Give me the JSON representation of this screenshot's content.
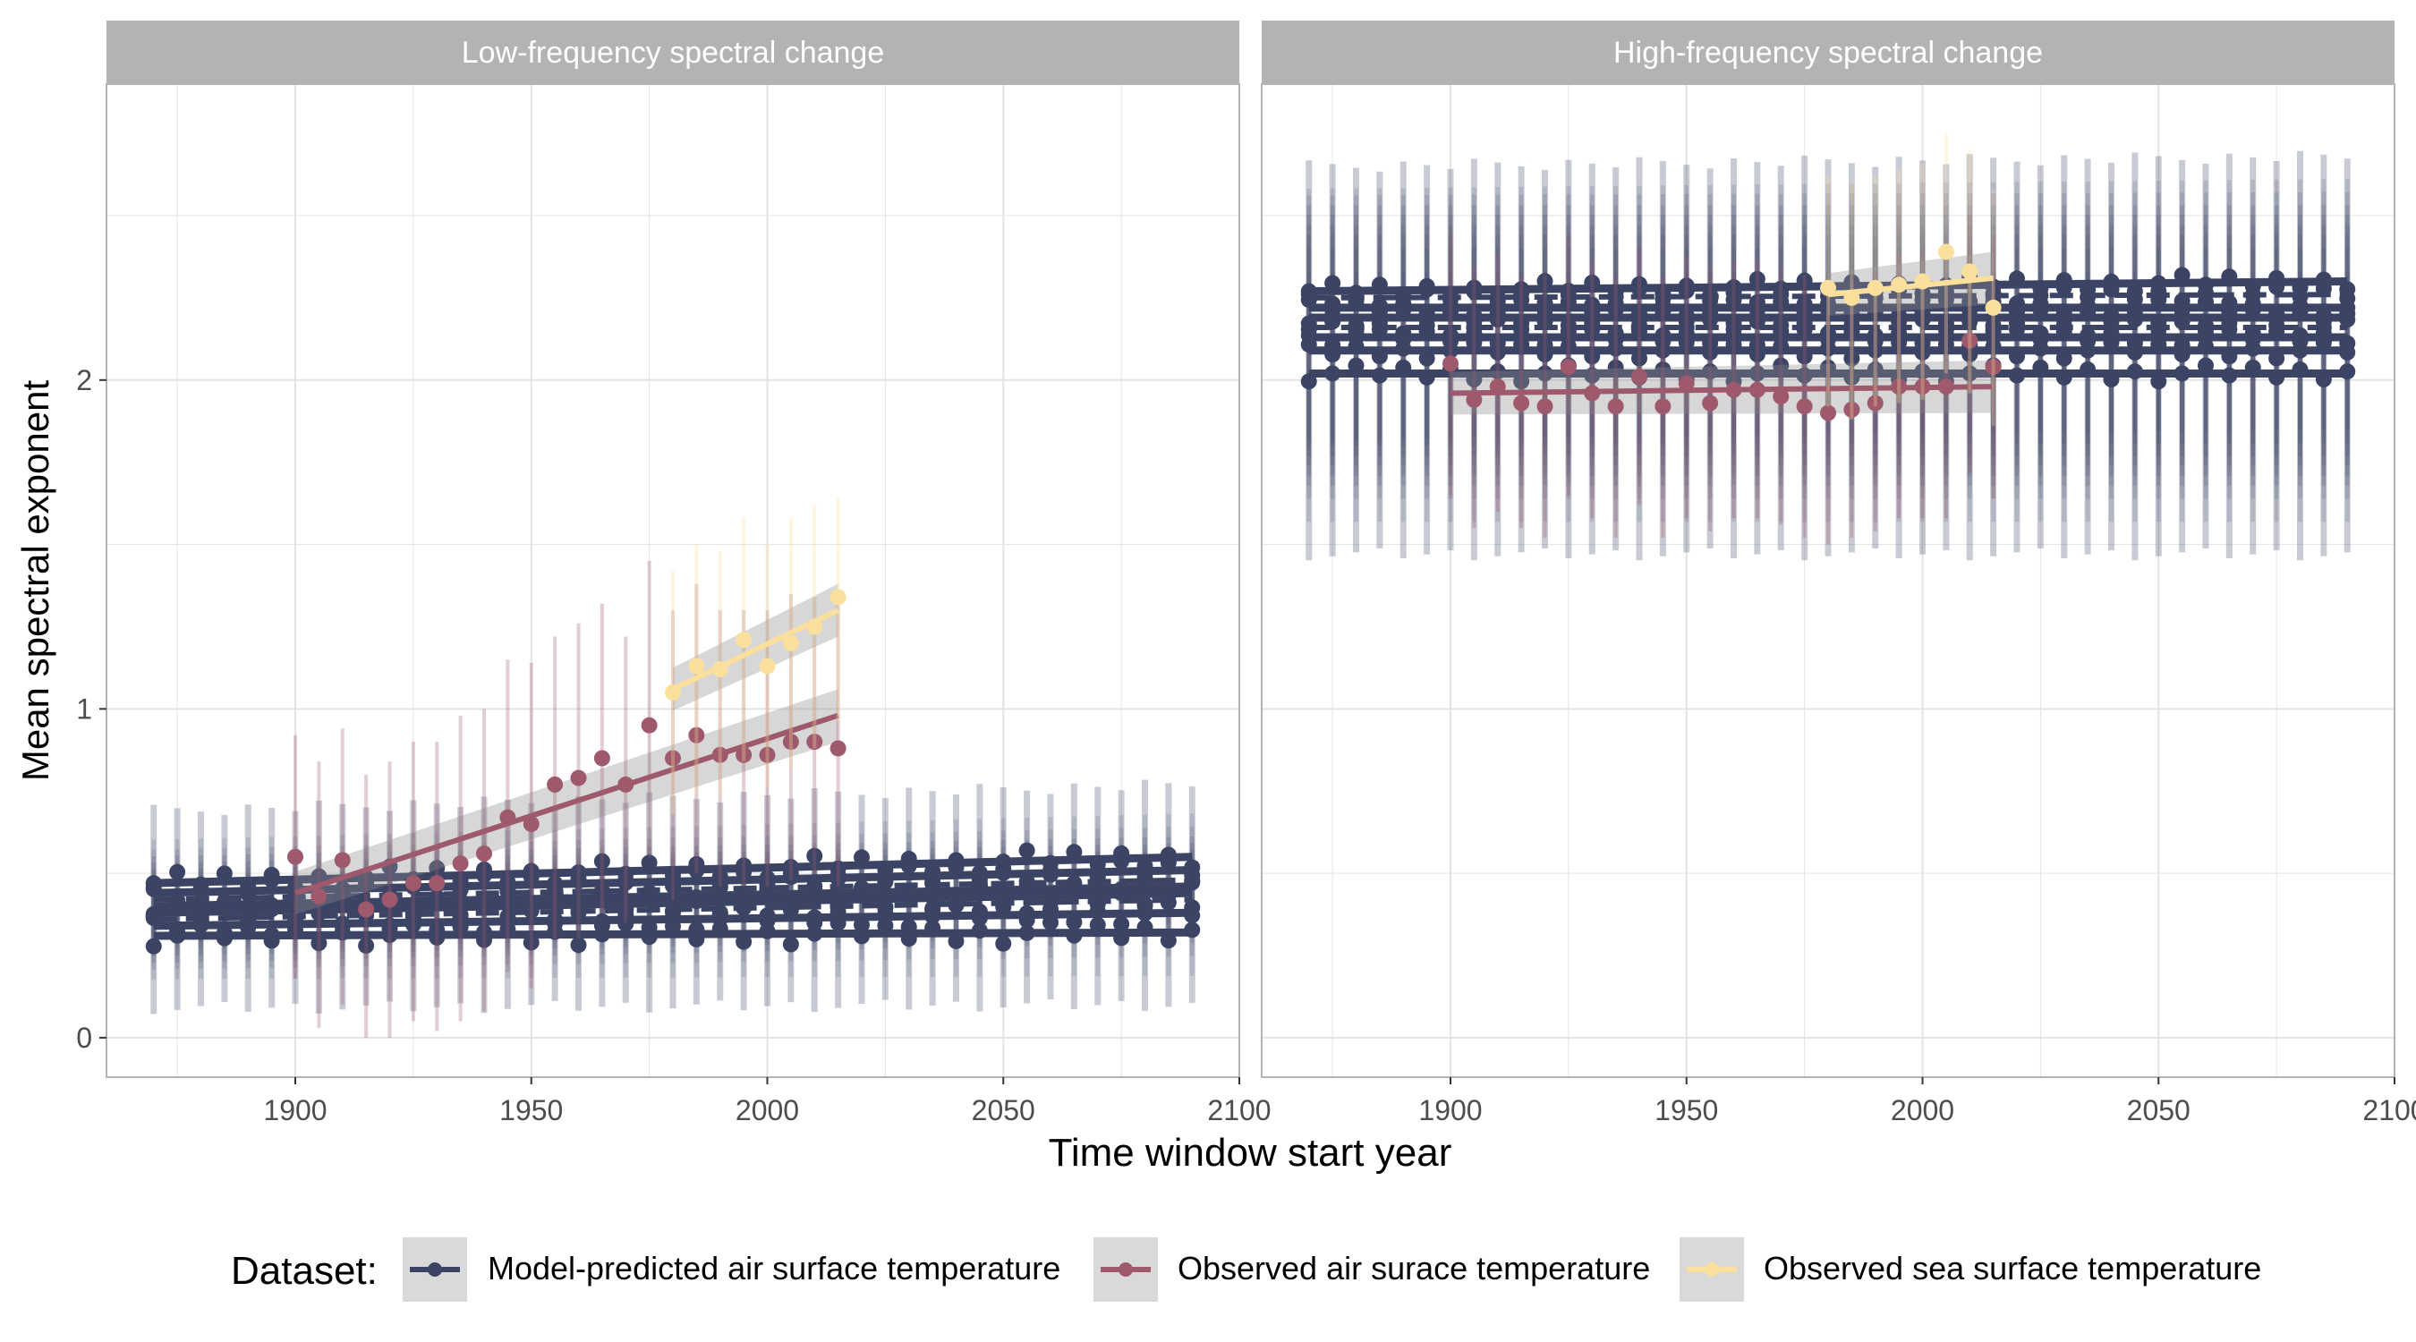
{
  "chart_data": {
    "type": "scatter",
    "y_label": "Mean spectral exponent",
    "x_label": "Time window start year",
    "x_ticks": [
      "1900",
      "1950",
      "2000",
      "2050",
      "2100"
    ],
    "y_ticks": [
      "0",
      "1",
      "2"
    ],
    "xlim": [
      1860,
      2100
    ],
    "ylim": [
      -0.12,
      2.9
    ],
    "grid": true,
    "legend": {
      "position": "bottom",
      "title": "Dataset:",
      "entries": [
        {
          "name": "Model-predicted air surface temperature",
          "color": "#3c4466"
        },
        {
          "name": "Observed air surace temperature",
          "color": "#9e5a6c"
        },
        {
          "name": "Observed sea surface temperature",
          "color": "#fbdf9d"
        }
      ]
    },
    "panels": [
      {
        "title": "Low-frequency spectral change",
        "model": {
          "x_start": 1870,
          "x_end": 2090,
          "x_step": 5,
          "member_start": [
            0.31,
            0.34,
            0.36,
            0.38,
            0.4,
            0.42,
            0.44,
            0.47
          ],
          "member_end": [
            0.32,
            0.38,
            0.42,
            0.44,
            0.46,
            0.48,
            0.51,
            0.55
          ],
          "band_low_offset": -0.22,
          "band_high_offset": 0.22,
          "dashed_members": [
            2,
            5
          ]
        },
        "observed_air": {
          "x": [
            1900,
            1905,
            1910,
            1915,
            1920,
            1925,
            1930,
            1935,
            1940,
            1945,
            1950,
            1955,
            1960,
            1965,
            1970,
            1975,
            1980,
            1985,
            1990,
            1995,
            2000,
            2005,
            2010,
            2015
          ],
          "y": [
            0.55,
            0.43,
            0.54,
            0.39,
            0.42,
            0.47,
            0.47,
            0.53,
            0.56,
            0.67,
            0.65,
            0.77,
            0.79,
            0.85,
            0.77,
            0.95,
            0.85,
            0.92,
            0.86,
            0.86,
            0.86,
            0.9,
            0.9,
            0.88
          ],
          "ci_low": [
            0.18,
            0.03,
            0.1,
            0.0,
            0.0,
            0.05,
            0.02,
            0.05,
            0.08,
            0.2,
            0.15,
            0.3,
            0.3,
            0.38,
            0.35,
            0.55,
            0.42,
            0.5,
            0.46,
            0.46,
            0.46,
            0.48,
            0.5,
            0.46
          ],
          "ci_high": [
            0.92,
            0.84,
            0.94,
            0.8,
            0.84,
            0.9,
            0.9,
            0.98,
            1.0,
            1.15,
            1.14,
            1.22,
            1.26,
            1.32,
            1.22,
            1.45,
            1.3,
            1.38,
            1.3,
            1.3,
            1.3,
            1.35,
            1.34,
            1.32
          ],
          "trend": {
            "x0": 1900,
            "y0": 0.44,
            "x1": 2015,
            "y1": 0.98
          }
        },
        "observed_sea": {
          "x": [
            1980,
            1985,
            1990,
            1995,
            2000,
            2005,
            2010,
            2015
          ],
          "y": [
            1.05,
            1.13,
            1.12,
            1.21,
            1.13,
            1.2,
            1.25,
            1.34
          ],
          "ci_low": [
            0.68,
            0.75,
            0.74,
            0.84,
            0.76,
            0.82,
            0.88,
            0.96
          ],
          "ci_high": [
            1.42,
            1.5,
            1.48,
            1.58,
            1.5,
            1.58,
            1.62,
            1.64
          ],
          "trend": {
            "x0": 1980,
            "y0": 1.06,
            "x1": 2015,
            "y1": 1.3
          }
        }
      },
      {
        "title": "High-frequency spectral change",
        "model": {
          "x_start": 1870,
          "x_end": 2090,
          "x_step": 5,
          "member_start": [
            2.02,
            2.09,
            2.13,
            2.16,
            2.19,
            2.22,
            2.25,
            2.27
          ],
          "member_end": [
            2.02,
            2.09,
            2.13,
            2.16,
            2.19,
            2.22,
            2.26,
            2.3
          ],
          "band_low_offset": -0.55,
          "band_high_offset": 0.38,
          "dashed_members": [
            3,
            6
          ]
        },
        "observed_air": {
          "x": [
            1900,
            1905,
            1910,
            1915,
            1920,
            1925,
            1930,
            1935,
            1940,
            1945,
            1950,
            1955,
            1960,
            1965,
            1970,
            1975,
            1980,
            1985,
            1990,
            1995,
            2000,
            2005,
            2010,
            2015
          ],
          "y": [
            2.05,
            1.94,
            1.98,
            1.93,
            1.92,
            2.04,
            1.96,
            1.92,
            2.01,
            1.92,
            1.99,
            1.93,
            1.97,
            1.97,
            1.95,
            1.92,
            1.9,
            1.91,
            1.93,
            1.98,
            1.98,
            1.98,
            2.12,
            2.04
          ],
          "ci_low": [
            1.65,
            1.55,
            1.6,
            1.55,
            1.52,
            1.65,
            1.58,
            1.52,
            1.62,
            1.52,
            1.58,
            1.54,
            1.58,
            1.58,
            1.56,
            1.52,
            1.5,
            1.52,
            1.54,
            1.58,
            1.58,
            1.58,
            1.72,
            1.64
          ],
          "ci_high": [
            2.45,
            2.34,
            2.38,
            2.32,
            2.32,
            2.44,
            2.36,
            2.32,
            2.4,
            2.32,
            2.38,
            2.34,
            2.36,
            2.36,
            2.34,
            2.32,
            2.3,
            2.3,
            2.32,
            2.38,
            2.38,
            2.38,
            2.5,
            2.44
          ],
          "trend": {
            "x0": 1900,
            "y0": 1.96,
            "x1": 2015,
            "y1": 1.98
          }
        },
        "observed_sea": {
          "x": [
            1980,
            1985,
            1990,
            1995,
            2000,
            2005,
            2010,
            2015
          ],
          "y": [
            2.28,
            2.25,
            2.28,
            2.29,
            2.3,
            2.39,
            2.33,
            2.22
          ],
          "ci_low": [
            1.92,
            1.88,
            1.92,
            1.93,
            1.94,
            2.02,
            1.96,
            1.86
          ],
          "ci_high": [
            2.62,
            2.6,
            2.62,
            2.64,
            2.66,
            2.75,
            2.7,
            2.58
          ],
          "trend": {
            "x0": 1980,
            "y0": 2.26,
            "x1": 2015,
            "y1": 2.31
          }
        }
      }
    ]
  }
}
